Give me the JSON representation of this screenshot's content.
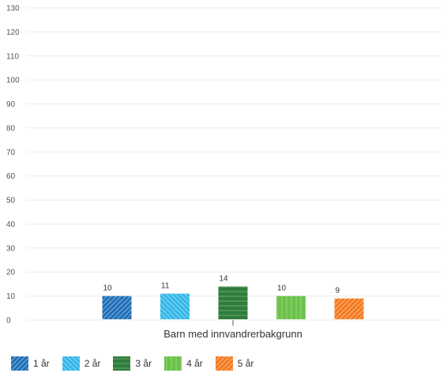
{
  "chart_data": {
    "type": "bar",
    "categories": [
      "Barn med innvandrerbakgrunn"
    ],
    "series": [
      {
        "name": "1 år",
        "values": [
          10
        ],
        "color": "#1f6fb8",
        "pattern": "diagonal-right"
      },
      {
        "name": "2 år",
        "values": [
          11
        ],
        "color": "#33b7e8",
        "pattern": "diagonal-left"
      },
      {
        "name": "3 år",
        "values": [
          14
        ],
        "color": "#2e7d3a",
        "pattern": "horizontal-lines"
      },
      {
        "name": "4 år",
        "values": [
          10
        ],
        "color": "#6cc24a",
        "pattern": "vertical-lines"
      },
      {
        "name": "5 år",
        "values": [
          9
        ],
        "color": "#f47a20",
        "pattern": "diagonal-right"
      }
    ],
    "y_ticks": [
      "0",
      "10",
      "20",
      "30",
      "40",
      "50",
      "60",
      "70",
      "80",
      "90",
      "100",
      "110",
      "120",
      "130"
    ],
    "ylim": [
      0,
      130
    ],
    "grid": true,
    "legend_position": "bottom-left",
    "title": "",
    "xlabel": "",
    "ylabel": ""
  }
}
